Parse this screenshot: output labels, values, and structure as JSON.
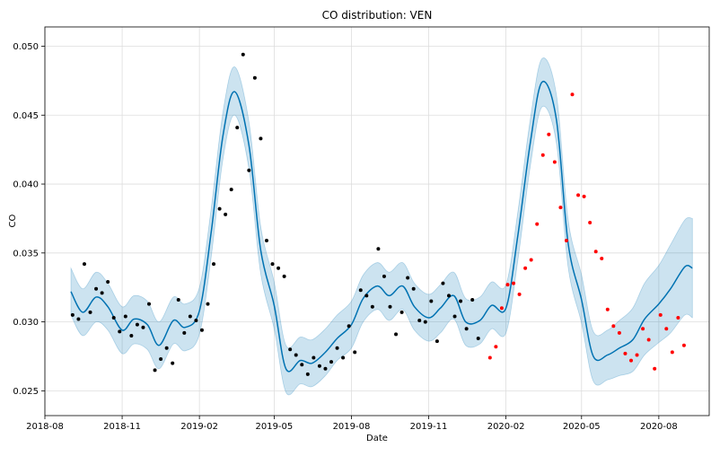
{
  "chart_data": {
    "type": "line",
    "title": "CO distribution: VEN",
    "xlabel": "Date",
    "ylabel": "CO",
    "x_ticks": [
      "2018-08",
      "2018-11",
      "2019-02",
      "2019-05",
      "2019-08",
      "2019-11",
      "2020-02",
      "2020-05",
      "2020-08"
    ],
    "y_ticks": [
      "0.025",
      "0.030",
      "0.035",
      "0.040",
      "0.045",
      "0.050"
    ],
    "xlim": [
      "2018-08-01",
      "2020-09-30"
    ],
    "ylim": [
      0.0232,
      0.0514
    ],
    "grid": true,
    "colors": {
      "forecast_line": "#0072B2",
      "interval_fill": "#0072B2",
      "train_points": "#000000",
      "test_points": "#ff0000",
      "grid": "#dddddd"
    },
    "forecast": {
      "x": [
        "2018-09-01",
        "2018-09-15",
        "2018-10-01",
        "2018-10-15",
        "2018-11-01",
        "2018-11-15",
        "2018-12-01",
        "2018-12-15",
        "2019-01-01",
        "2019-01-15",
        "2019-02-01",
        "2019-02-15",
        "2019-03-01",
        "2019-03-15",
        "2019-04-01",
        "2019-04-15",
        "2019-05-01",
        "2019-05-15",
        "2019-06-01",
        "2019-06-15",
        "2019-07-01",
        "2019-07-15",
        "2019-08-01",
        "2019-08-15",
        "2019-09-01",
        "2019-09-15",
        "2019-10-01",
        "2019-10-15",
        "2019-11-01",
        "2019-11-15",
        "2019-12-01",
        "2019-12-15",
        "2020-01-01",
        "2020-01-15",
        "2020-02-01",
        "2020-02-15",
        "2020-03-01",
        "2020-03-15",
        "2020-04-01",
        "2020-04-15",
        "2020-05-01",
        "2020-05-15",
        "2020-06-01",
        "2020-06-15",
        "2020-07-01",
        "2020-07-15",
        "2020-08-01",
        "2020-08-15",
        "2020-09-01",
        "2020-09-10"
      ],
      "yhat": [
        0.0322,
        0.0307,
        0.0318,
        0.0311,
        0.0294,
        0.0302,
        0.0298,
        0.0283,
        0.0301,
        0.0296,
        0.0308,
        0.0365,
        0.0435,
        0.0467,
        0.0428,
        0.0352,
        0.0312,
        0.0266,
        0.0272,
        0.027,
        0.0278,
        0.0288,
        0.0298,
        0.0317,
        0.0326,
        0.0319,
        0.0326,
        0.0311,
        0.0303,
        0.031,
        0.0319,
        0.03,
        0.0301,
        0.0312,
        0.031,
        0.0362,
        0.043,
        0.0474,
        0.0447,
        0.0357,
        0.0316,
        0.0275,
        0.0276,
        0.0281,
        0.0287,
        0.0302,
        0.0313,
        0.0324,
        0.034,
        0.0339
      ],
      "lower": [
        0.0305,
        0.029,
        0.03,
        0.0294,
        0.0277,
        0.0284,
        0.028,
        0.0266,
        0.0284,
        0.0279,
        0.0291,
        0.0347,
        0.0418,
        0.045,
        0.0411,
        0.0335,
        0.0295,
        0.0249,
        0.0255,
        0.0253,
        0.0261,
        0.0272,
        0.0281,
        0.03,
        0.0309,
        0.0301,
        0.0309,
        0.0294,
        0.0286,
        0.0292,
        0.0302,
        0.0283,
        0.0284,
        0.0295,
        0.0292,
        0.0344,
        0.0413,
        0.0456,
        0.043,
        0.034,
        0.0299,
        0.0257,
        0.0258,
        0.0261,
        0.0264,
        0.0276,
        0.0285,
        0.0292,
        0.0305,
        0.0303
      ],
      "upper": [
        0.0339,
        0.0324,
        0.0336,
        0.0328,
        0.0311,
        0.0319,
        0.0315,
        0.03,
        0.0318,
        0.0313,
        0.0325,
        0.0382,
        0.0452,
        0.0485,
        0.0445,
        0.0369,
        0.0329,
        0.0283,
        0.0289,
        0.0287,
        0.0295,
        0.0305,
        0.0315,
        0.0334,
        0.0343,
        0.0336,
        0.0343,
        0.0328,
        0.032,
        0.0327,
        0.0336,
        0.0317,
        0.0318,
        0.0329,
        0.0327,
        0.0379,
        0.0447,
        0.0491,
        0.0465,
        0.0374,
        0.0334,
        0.0293,
        0.0294,
        0.0301,
        0.031,
        0.0328,
        0.0341,
        0.0356,
        0.0374,
        0.0375
      ]
    },
    "train_points": {
      "x": [
        "2018-09-03",
        "2018-09-10",
        "2018-09-17",
        "2018-09-24",
        "2018-10-01",
        "2018-10-08",
        "2018-10-15",
        "2018-10-22",
        "2018-10-29",
        "2018-11-05",
        "2018-11-12",
        "2018-11-19",
        "2018-11-26",
        "2018-12-03",
        "2018-12-10",
        "2018-12-17",
        "2018-12-24",
        "2018-12-31",
        "2019-01-07",
        "2019-01-14",
        "2019-01-21",
        "2019-01-28",
        "2019-02-04",
        "2019-02-11",
        "2019-02-18",
        "2019-02-25",
        "2019-03-04",
        "2019-03-11",
        "2019-03-18",
        "2019-03-25",
        "2019-04-01",
        "2019-04-08",
        "2019-04-15",
        "2019-04-22",
        "2019-04-29",
        "2019-05-06",
        "2019-05-13",
        "2019-05-20",
        "2019-05-27",
        "2019-06-03",
        "2019-06-10",
        "2019-06-17",
        "2019-06-24",
        "2019-07-01",
        "2019-07-08",
        "2019-07-15",
        "2019-07-22",
        "2019-07-29",
        "2019-08-05",
        "2019-08-12",
        "2019-08-19",
        "2019-08-26",
        "2019-09-02",
        "2019-09-09",
        "2019-09-16",
        "2019-09-23",
        "2019-09-30",
        "2019-10-07",
        "2019-10-14",
        "2019-10-21",
        "2019-10-28",
        "2019-11-04",
        "2019-11-11",
        "2019-11-18",
        "2019-11-25",
        "2019-12-02",
        "2019-12-09",
        "2019-12-16",
        "2019-12-23",
        "2019-12-30"
      ],
      "y": [
        0.0305,
        0.0302,
        0.0342,
        0.0307,
        0.0324,
        0.0321,
        0.0329,
        0.0303,
        0.0293,
        0.0304,
        0.029,
        0.0298,
        0.0296,
        0.0313,
        0.0265,
        0.0273,
        0.0281,
        0.027,
        0.0316,
        0.0292,
        0.0304,
        0.0301,
        0.0294,
        0.0313,
        0.0342,
        0.0382,
        0.0378,
        0.0396,
        0.0441,
        0.0494,
        0.041,
        0.0477,
        0.0433,
        0.0359,
        0.0342,
        0.0339,
        0.0333,
        0.028,
        0.0276,
        0.0269,
        0.0262,
        0.0274,
        0.0268,
        0.0266,
        0.0271,
        0.0281,
        0.0274,
        0.0297,
        0.0278,
        0.0323,
        0.0319,
        0.0311,
        0.0353,
        0.0333,
        0.0311,
        0.0291,
        0.0307,
        0.0332,
        0.0324,
        0.0301,
        0.03,
        0.0315,
        0.0286,
        0.0328,
        0.0319,
        0.0304,
        0.0315,
        0.0295,
        0.0316,
        0.0288
      ]
    },
    "test_points": {
      "x": [
        "2020-01-13",
        "2020-01-20",
        "2020-01-27",
        "2020-02-03",
        "2020-02-10",
        "2020-02-17",
        "2020-02-24",
        "2020-03-02",
        "2020-03-09",
        "2020-03-16",
        "2020-03-23",
        "2020-03-30",
        "2020-04-06",
        "2020-04-13",
        "2020-04-20",
        "2020-04-27",
        "2020-05-04",
        "2020-05-11",
        "2020-05-18",
        "2020-05-25",
        "2020-06-01",
        "2020-06-08",
        "2020-06-15",
        "2020-06-22",
        "2020-06-29",
        "2020-07-06",
        "2020-07-13",
        "2020-07-20",
        "2020-07-27",
        "2020-08-03",
        "2020-08-10",
        "2020-08-17",
        "2020-08-24",
        "2020-08-31"
      ],
      "y": [
        0.0274,
        0.0282,
        0.031,
        0.0327,
        0.0328,
        0.032,
        0.0339,
        0.0345,
        0.0371,
        0.0421,
        0.0436,
        0.0416,
        0.0383,
        0.0359,
        0.0465,
        0.0392,
        0.0391,
        0.0372,
        0.0351,
        0.0346,
        0.0309,
        0.0297,
        0.0292,
        0.0277,
        0.0272,
        0.0276,
        0.0295,
        0.0287,
        0.0266,
        0.0305,
        0.0295,
        0.0278,
        0.0303,
        0.0283
      ]
    }
  }
}
